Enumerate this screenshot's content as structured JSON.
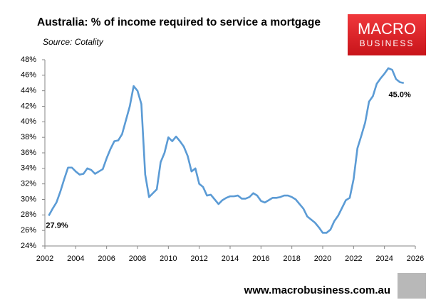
{
  "chart_data": {
    "type": "line",
    "title": "Australia: % of income required to service a mortgage",
    "subtitle": "Source: Cotality",
    "x": [
      2002.25,
      2002.5,
      2002.75,
      2003.0,
      2003.25,
      2003.5,
      2003.75,
      2004.0,
      2004.25,
      2004.5,
      2004.75,
      2005.0,
      2005.25,
      2005.5,
      2005.75,
      2006.0,
      2006.25,
      2006.5,
      2006.75,
      2007.0,
      2007.25,
      2007.5,
      2007.75,
      2008.0,
      2008.25,
      2008.5,
      2008.75,
      2009.0,
      2009.25,
      2009.5,
      2009.75,
      2010.0,
      2010.25,
      2010.5,
      2010.75,
      2011.0,
      2011.25,
      2011.5,
      2011.75,
      2012.0,
      2012.25,
      2012.5,
      2012.75,
      2013.0,
      2013.25,
      2013.5,
      2013.75,
      2014.0,
      2014.25,
      2014.5,
      2014.75,
      2015.0,
      2015.25,
      2015.5,
      2015.75,
      2016.0,
      2016.25,
      2016.5,
      2016.75,
      2017.0,
      2017.25,
      2017.5,
      2017.75,
      2018.0,
      2018.25,
      2018.5,
      2018.75,
      2019.0,
      2019.25,
      2019.5,
      2019.75,
      2020.0,
      2020.25,
      2020.5,
      2020.75,
      2021.0,
      2021.25,
      2021.5,
      2021.75,
      2022.0,
      2022.25,
      2022.5,
      2022.75,
      2023.0,
      2023.25,
      2023.5,
      2023.75,
      2024.0,
      2024.25,
      2024.5,
      2024.75,
      2025.0,
      2025.25
    ],
    "values": [
      27.9,
      28.8,
      29.6,
      31.0,
      32.6,
      34.1,
      34.1,
      33.6,
      33.2,
      33.3,
      34.0,
      33.8,
      33.3,
      33.6,
      33.9,
      35.3,
      36.5,
      37.5,
      37.6,
      38.4,
      40.2,
      42.0,
      44.6,
      44.0,
      42.3,
      33.2,
      30.3,
      30.8,
      31.3,
      34.8,
      36.0,
      38.0,
      37.5,
      38.1,
      37.5,
      36.8,
      35.6,
      33.6,
      34.0,
      32.0,
      31.6,
      30.5,
      30.6,
      30.0,
      29.4,
      29.9,
      30.2,
      30.4,
      30.4,
      30.5,
      30.1,
      30.1,
      30.3,
      30.8,
      30.5,
      29.8,
      29.6,
      29.9,
      30.2,
      30.2,
      30.3,
      30.5,
      30.5,
      30.3,
      30.0,
      29.4,
      28.8,
      27.8,
      27.4,
      27.0,
      26.4,
      25.7,
      25.7,
      26.1,
      27.2,
      27.9,
      28.9,
      29.9,
      30.2,
      32.6,
      36.6,
      38.2,
      39.9,
      42.6,
      43.3,
      44.9,
      45.6,
      46.2,
      46.9,
      46.7,
      45.5,
      45.1,
      45.0
    ],
    "value_labels": [
      "27.9%",
      null,
      null,
      null,
      null,
      null,
      null,
      null,
      null,
      null,
      null,
      null,
      null,
      null,
      null,
      null,
      null,
      null,
      null,
      null,
      null,
      null,
      null,
      null,
      null,
      null,
      null,
      null,
      null,
      null,
      null,
      null,
      null,
      null,
      null,
      null,
      null,
      null,
      null,
      null,
      null,
      null,
      null,
      null,
      null,
      null,
      null,
      null,
      null,
      null,
      null,
      null,
      null,
      null,
      null,
      null,
      null,
      null,
      null,
      null,
      null,
      null,
      null,
      null,
      null,
      null,
      null,
      null,
      null,
      null,
      null,
      null,
      null,
      null,
      null,
      null,
      null,
      null,
      null,
      null,
      null,
      null,
      null,
      null,
      null,
      null,
      null,
      null,
      null,
      null,
      null,
      null,
      "45.0%"
    ],
    "color": "#5b9bd5",
    "xlim": [
      2002,
      2026
    ],
    "xticks": [
      2002,
      2004,
      2006,
      2008,
      2010,
      2012,
      2014,
      2016,
      2018,
      2020,
      2022,
      2024,
      2026
    ],
    "ylim": [
      24,
      48
    ],
    "yticks": [
      {
        "value": 24,
        "label": "24%"
      },
      {
        "value": 26,
        "label": "26%"
      },
      {
        "value": 28,
        "label": "28%"
      },
      {
        "value": 30,
        "label": "30%"
      },
      {
        "value": 32,
        "label": "32%"
      },
      {
        "value": 34,
        "label": "34%"
      },
      {
        "value": 36,
        "label": "36%"
      },
      {
        "value": 38,
        "label": "38%"
      },
      {
        "value": 40,
        "label": "40%"
      },
      {
        "value": 42,
        "label": "42%"
      },
      {
        "value": 44,
        "label": "44%"
      },
      {
        "value": 46,
        "label": "46%"
      },
      {
        "value": 48,
        "label": "48%"
      }
    ],
    "grid": false
  },
  "branding": {
    "logo_top": "MACRO",
    "logo_bottom": "BUSINESS",
    "url": "www.macrobusiness.com.au"
  }
}
